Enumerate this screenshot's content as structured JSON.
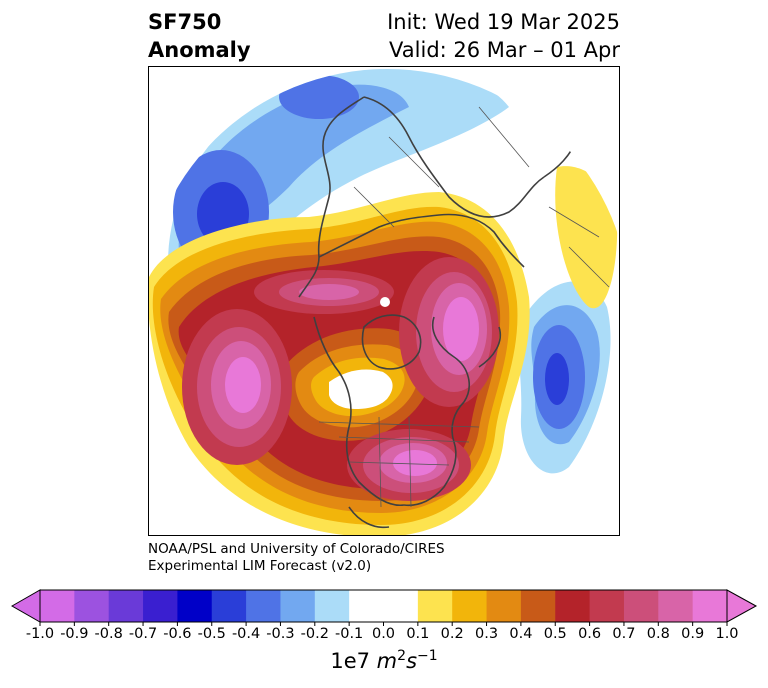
{
  "header": {
    "title_line1": "SF750",
    "title_line2": "Anomaly",
    "init_text": "Init: Wed 19 Mar 2025",
    "valid_text": "Valid: 26 Mar – 01 Apr"
  },
  "credit": {
    "line1": "NOAA/PSL and University of Colorado/CIRES",
    "line2": "Experimental LIM Forecast (v2.0)"
  },
  "colorbar": {
    "unit_base": "1e7 ",
    "unit_m": "m",
    "unit_sup1": "2",
    "unit_s": "s",
    "unit_sup2": "−1",
    "ticks": [
      "-1.0",
      "-0.9",
      "-0.8",
      "-0.7",
      "-0.6",
      "-0.5",
      "-0.4",
      "-0.3",
      "-0.2",
      "-0.1",
      "0.0",
      "0.1",
      "0.2",
      "0.3",
      "0.4",
      "0.5",
      "0.6",
      "0.7",
      "0.8",
      "0.9",
      "1.0"
    ],
    "colors": [
      "#d36be7",
      "#9c52e0",
      "#6a3ad8",
      "#3a1fd0",
      "#0000c8",
      "#2a3ed8",
      "#4f73e6",
      "#72a8f0",
      "#abdcf8",
      "#ffffff",
      "#ffffff",
      "#fde34f",
      "#f2b50b",
      "#e38a12",
      "#c85a18",
      "#b4232a",
      "#c23a4f",
      "#cc4f7a",
      "#d864a8",
      "#e878d8"
    ],
    "under_color": "#d36be7",
    "over_color": "#e878d8"
  },
  "map": {
    "projection": "north-polar-stereographic",
    "neg_colors": [
      "#abdcf8",
      "#72a8f0",
      "#4f73e6",
      "#2a3ed8"
    ],
    "pos_colors": [
      "#fde34f",
      "#f2b50b",
      "#e38a12",
      "#c85a18",
      "#b4232a",
      "#c23a4f",
      "#cc4f7a",
      "#d864a8",
      "#e878d8"
    ]
  }
}
